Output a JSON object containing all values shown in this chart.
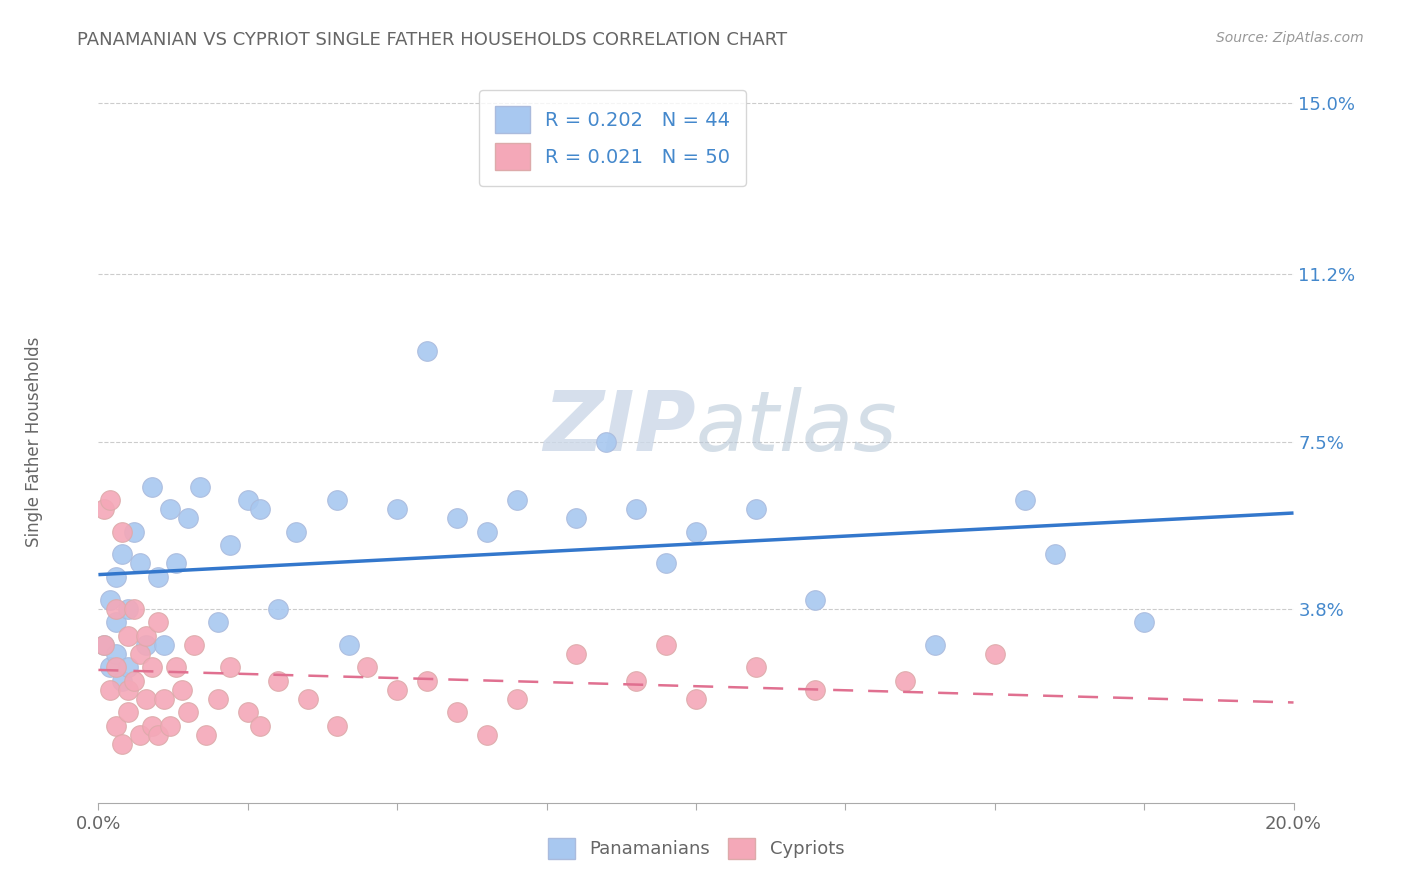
{
  "title": "PANAMANIAN VS CYPRIOT SINGLE FATHER HOUSEHOLDS CORRELATION CHART",
  "source": "Source: ZipAtlas.com",
  "ylabel": "Single Father Households",
  "xlim": [
    0.0,
    0.2
  ],
  "ylim": [
    -0.005,
    0.155
  ],
  "xticks": [
    0.0,
    0.025,
    0.05,
    0.075,
    0.1,
    0.125,
    0.15,
    0.175,
    0.2
  ],
  "xtick_labels_show": {
    "0.0": "0.0%",
    "0.20": "20.0%"
  },
  "yticks": [
    0.0,
    0.038,
    0.075,
    0.112,
    0.15
  ],
  "ytick_labels": [
    "",
    "3.8%",
    "7.5%",
    "11.2%",
    "15.0%"
  ],
  "pan_color": "#a8c8f0",
  "cyp_color": "#f4a8b8",
  "pan_line_color": "#3377cc",
  "cyp_line_color": "#e07090",
  "watermark_color": "#ccd8e8",
  "legend_pan_label": "R = 0.202   N = 44",
  "legend_cyp_label": "R = 0.021   N = 50",
  "pan_legend_label": "Panamanians",
  "cyp_legend_label": "Cypriots",
  "panamanian_x": [
    0.001,
    0.002,
    0.002,
    0.003,
    0.003,
    0.003,
    0.004,
    0.004,
    0.005,
    0.005,
    0.006,
    0.007,
    0.008,
    0.009,
    0.01,
    0.011,
    0.012,
    0.013,
    0.015,
    0.017,
    0.02,
    0.022,
    0.025,
    0.027,
    0.03,
    0.033,
    0.04,
    0.042,
    0.05,
    0.055,
    0.06,
    0.065,
    0.07,
    0.08,
    0.085,
    0.09,
    0.095,
    0.1,
    0.11,
    0.12,
    0.14,
    0.155,
    0.16,
    0.175
  ],
  "panamanian_y": [
    0.03,
    0.025,
    0.04,
    0.035,
    0.028,
    0.045,
    0.022,
    0.05,
    0.038,
    0.025,
    0.055,
    0.048,
    0.03,
    0.065,
    0.045,
    0.03,
    0.06,
    0.048,
    0.058,
    0.065,
    0.035,
    0.052,
    0.062,
    0.06,
    0.038,
    0.055,
    0.062,
    0.03,
    0.06,
    0.095,
    0.058,
    0.055,
    0.062,
    0.058,
    0.075,
    0.06,
    0.048,
    0.055,
    0.06,
    0.04,
    0.03,
    0.062,
    0.05,
    0.035
  ],
  "cypriot_x": [
    0.001,
    0.001,
    0.002,
    0.002,
    0.003,
    0.003,
    0.003,
    0.004,
    0.004,
    0.005,
    0.005,
    0.005,
    0.006,
    0.006,
    0.007,
    0.007,
    0.008,
    0.008,
    0.009,
    0.009,
    0.01,
    0.01,
    0.011,
    0.012,
    0.013,
    0.014,
    0.015,
    0.016,
    0.018,
    0.02,
    0.022,
    0.025,
    0.027,
    0.03,
    0.035,
    0.04,
    0.045,
    0.05,
    0.055,
    0.06,
    0.065,
    0.07,
    0.08,
    0.09,
    0.095,
    0.1,
    0.11,
    0.12,
    0.135,
    0.15
  ],
  "cypriot_y": [
    0.06,
    0.03,
    0.062,
    0.02,
    0.025,
    0.038,
    0.012,
    0.055,
    0.008,
    0.02,
    0.032,
    0.015,
    0.022,
    0.038,
    0.028,
    0.01,
    0.018,
    0.032,
    0.012,
    0.025,
    0.01,
    0.035,
    0.018,
    0.012,
    0.025,
    0.02,
    0.015,
    0.03,
    0.01,
    0.018,
    0.025,
    0.015,
    0.012,
    0.022,
    0.018,
    0.012,
    0.025,
    0.02,
    0.022,
    0.015,
    0.01,
    0.018,
    0.028,
    0.022,
    0.03,
    0.018,
    0.025,
    0.02,
    0.022,
    0.028
  ]
}
